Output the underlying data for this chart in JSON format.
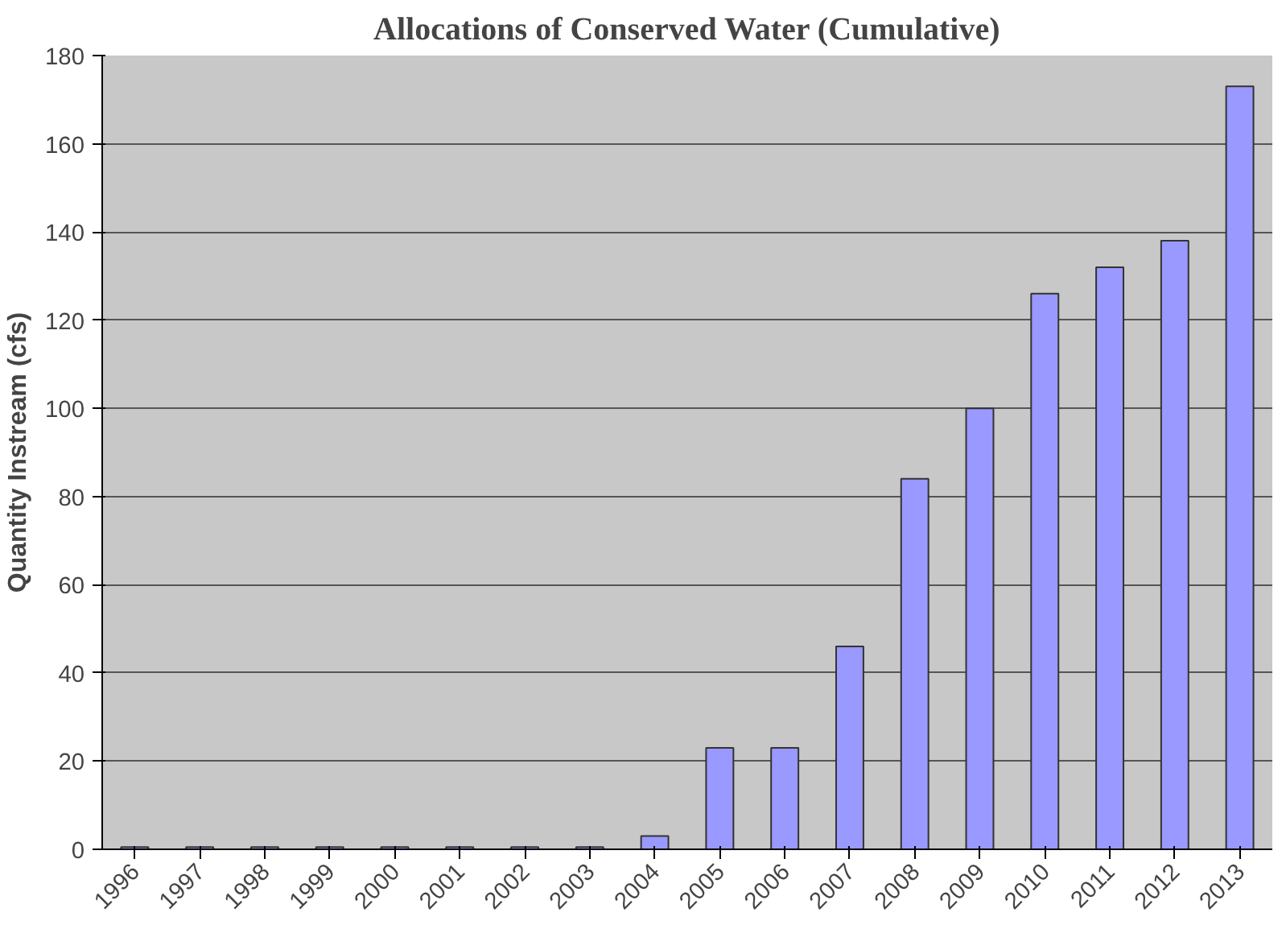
{
  "chart_data": {
    "type": "bar",
    "title": "Allocations of Conserved Water (Cumulative)",
    "ylabel": "Quantity Instream (cfs)",
    "categories": [
      "1996",
      "1997",
      "1998",
      "1999",
      "2000",
      "2001",
      "2002",
      "2003",
      "2004",
      "2005",
      "2006",
      "2007",
      "2008",
      "2009",
      "2010",
      "2011",
      "2012",
      "2013"
    ],
    "values": [
      0.5,
      0.5,
      0.5,
      0.5,
      0.5,
      0.5,
      0.5,
      0.5,
      3,
      23,
      23,
      46,
      84,
      100,
      126,
      132,
      138,
      173
    ],
    "color": "#9999ff",
    "ylim": [
      0,
      180
    ],
    "yticks": [
      0,
      20,
      40,
      60,
      80,
      100,
      120,
      140,
      160,
      180
    ],
    "grid": "y"
  }
}
